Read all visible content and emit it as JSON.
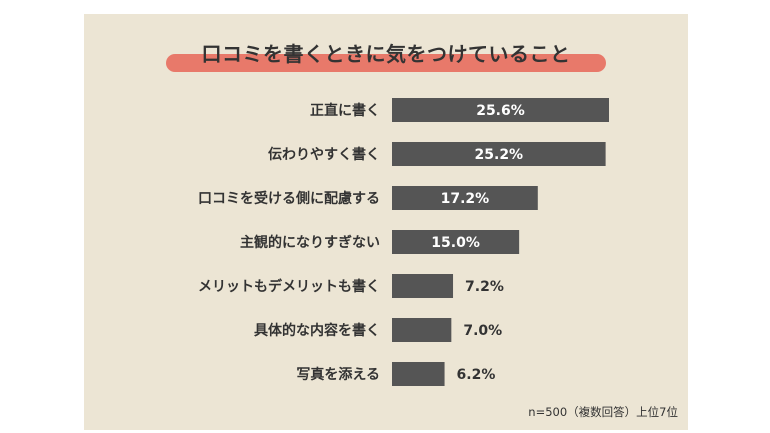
{
  "colors": {
    "background": "#ece5d4",
    "bar": "#555555",
    "title_highlight": "#e8796a"
  },
  "chart_data": {
    "type": "bar",
    "orientation": "horizontal",
    "title": "口コミを書くときに気をつけていること",
    "categories": [
      "正直に書く",
      "伝わりやすく書く",
      "口コミを受ける側に配慮する",
      "主観的になりすぎない",
      "メリットもデメリットも書く",
      "具体的な内容を書く",
      "写真を添える"
    ],
    "values": [
      25.6,
      25.2,
      17.2,
      15.0,
      7.2,
      7.0,
      6.2
    ],
    "value_labels": [
      "25.6%",
      "25.2%",
      "17.2%",
      "15.0%",
      "7.2%",
      "7.0%",
      "6.2%"
    ],
    "xlim": [
      0,
      25.6
    ],
    "grid": false,
    "note": "n=500（複数回答）上位7位"
  }
}
